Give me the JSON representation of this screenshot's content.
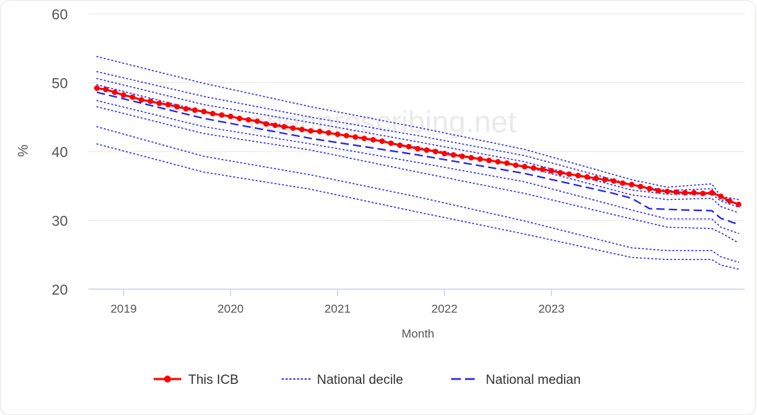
{
  "chart_data": {
    "type": "line",
    "title": "",
    "xlabel": "Month",
    "ylabel": "%",
    "watermark": "openprescribing.net",
    "x_ticks": [
      "2019",
      "2020",
      "2021",
      "2022",
      "2023"
    ],
    "y_ticks": [
      "20",
      "30",
      "40",
      "50",
      "60"
    ],
    "xlim": [
      "2018-10",
      "2023-10"
    ],
    "ylim": [
      20,
      60
    ],
    "grid": "horizontal",
    "legend_placement": "bottom",
    "colors": {
      "icb": "#ff0000",
      "decile": "#2b2bf5",
      "median": "#2424e8",
      "grid": "#e6e6e6",
      "axis": "#c8d4ec"
    },
    "series": [
      {
        "name": "This ICB",
        "style": "solid-markers",
        "x_start": "2018-10",
        "values": [
          49.2,
          49.0,
          48.6,
          48.2,
          47.9,
          47.5,
          47.3,
          47.0,
          46.8,
          46.5,
          46.2,
          46.0,
          45.8,
          45.5,
          45.3,
          45.1,
          44.8,
          44.6,
          44.4,
          44.0,
          43.8,
          43.6,
          43.4,
          43.2,
          43.0,
          42.9,
          42.7,
          42.5,
          42.3,
          42.1,
          41.9,
          41.7,
          41.5,
          41.2,
          40.9,
          40.7,
          40.4,
          40.2,
          40.0,
          39.7,
          39.5,
          39.3,
          39.1,
          38.9,
          38.7,
          38.5,
          38.3,
          38.0,
          37.8,
          37.6,
          37.4,
          37.2,
          36.9,
          36.7,
          36.5,
          36.3,
          36.1,
          35.9,
          35.7,
          35.4,
          35.2,
          34.9,
          34.6,
          34.3,
          34.2,
          34.1,
          34.0,
          34.0,
          33.9,
          34.0,
          33.5,
          32.8,
          32.3
        ]
      },
      {
        "name": "National median",
        "style": "dashed",
        "x_start": "2018-10",
        "points": [
          [
            0,
            48.6
          ],
          [
            12,
            44.8
          ],
          [
            24,
            41.9
          ],
          [
            36,
            39.5
          ],
          [
            48,
            36.8
          ],
          [
            58,
            33.9
          ],
          [
            60,
            33.2
          ],
          [
            62,
            31.7
          ],
          [
            66,
            31.5
          ],
          [
            69,
            31.4
          ],
          [
            70,
            30.3
          ],
          [
            72,
            29.4
          ]
        ]
      },
      {
        "name": "National decile",
        "style": "dotted",
        "deciles": [
          {
            "values": [
              [
                0,
                53.8
              ],
              [
                12,
                49.9
              ],
              [
                24,
                46.5
              ],
              [
                36,
                43.5
              ],
              [
                48,
                40.3
              ],
              [
                60,
                35.9
              ],
              [
                64,
                34.8
              ],
              [
                69,
                35.3
              ],
              [
                70,
                33.5
              ],
              [
                72,
                33.0
              ]
            ]
          },
          {
            "values": [
              [
                0,
                51.6
              ],
              [
                12,
                48.0
              ],
              [
                24,
                45.0
              ],
              [
                36,
                42.3
              ],
              [
                48,
                39.4
              ],
              [
                60,
                35.2
              ],
              [
                64,
                34.3
              ],
              [
                69,
                34.6
              ],
              [
                70,
                33.0
              ],
              [
                72,
                32.4
              ]
            ]
          },
          {
            "values": [
              [
                0,
                50.6
              ],
              [
                12,
                46.8
              ],
              [
                24,
                44.2
              ],
              [
                36,
                41.4
              ],
              [
                48,
                38.5
              ],
              [
                60,
                34.4
              ],
              [
                64,
                33.8
              ],
              [
                69,
                33.8
              ],
              [
                70,
                32.8
              ],
              [
                72,
                31.9
              ]
            ]
          },
          {
            "values": [
              [
                0,
                49.7
              ],
              [
                12,
                45.8
              ],
              [
                24,
                43.1
              ],
              [
                36,
                40.6
              ],
              [
                48,
                37.8
              ],
              [
                60,
                33.7
              ],
              [
                64,
                33.0
              ],
              [
                69,
                33.2
              ],
              [
                70,
                32.0
              ],
              [
                72,
                31.1
              ]
            ]
          },
          {
            "values": [
              [
                0,
                47.4
              ],
              [
                12,
                43.6
              ],
              [
                24,
                41.1
              ],
              [
                36,
                38.4
              ],
              [
                48,
                35.6
              ],
              [
                60,
                31.5
              ],
              [
                64,
                30.2
              ],
              [
                69,
                30.2
              ],
              [
                70,
                29.0
              ],
              [
                72,
                28.1
              ]
            ]
          },
          {
            "values": [
              [
                0,
                46.5
              ],
              [
                12,
                42.6
              ],
              [
                24,
                40.2
              ],
              [
                36,
                37.0
              ],
              [
                48,
                33.9
              ],
              [
                60,
                30.2
              ],
              [
                64,
                29.0
              ],
              [
                69,
                28.8
              ],
              [
                70,
                28.2
              ],
              [
                72,
                26.7
              ]
            ]
          },
          {
            "values": [
              [
                0,
                43.6
              ],
              [
                12,
                39.3
              ],
              [
                24,
                36.6
              ],
              [
                36,
                33.4
              ],
              [
                48,
                29.9
              ],
              [
                60,
                26.0
              ],
              [
                64,
                25.6
              ],
              [
                69,
                25.6
              ],
              [
                70,
                24.7
              ],
              [
                72,
                23.9
              ]
            ]
          },
          {
            "values": [
              [
                0,
                41.1
              ],
              [
                12,
                37.0
              ],
              [
                24,
                34.5
              ],
              [
                36,
                31.2
              ],
              [
                48,
                28.0
              ],
              [
                60,
                24.6
              ],
              [
                64,
                24.3
              ],
              [
                69,
                24.3
              ],
              [
                70,
                23.5
              ],
              [
                72,
                22.9
              ]
            ]
          }
        ]
      }
    ],
    "legend": [
      {
        "label": "This ICB",
        "style": "solid-markers"
      },
      {
        "label": "National decile",
        "style": "dotted"
      },
      {
        "label": "National median",
        "style": "dashed"
      }
    ]
  }
}
